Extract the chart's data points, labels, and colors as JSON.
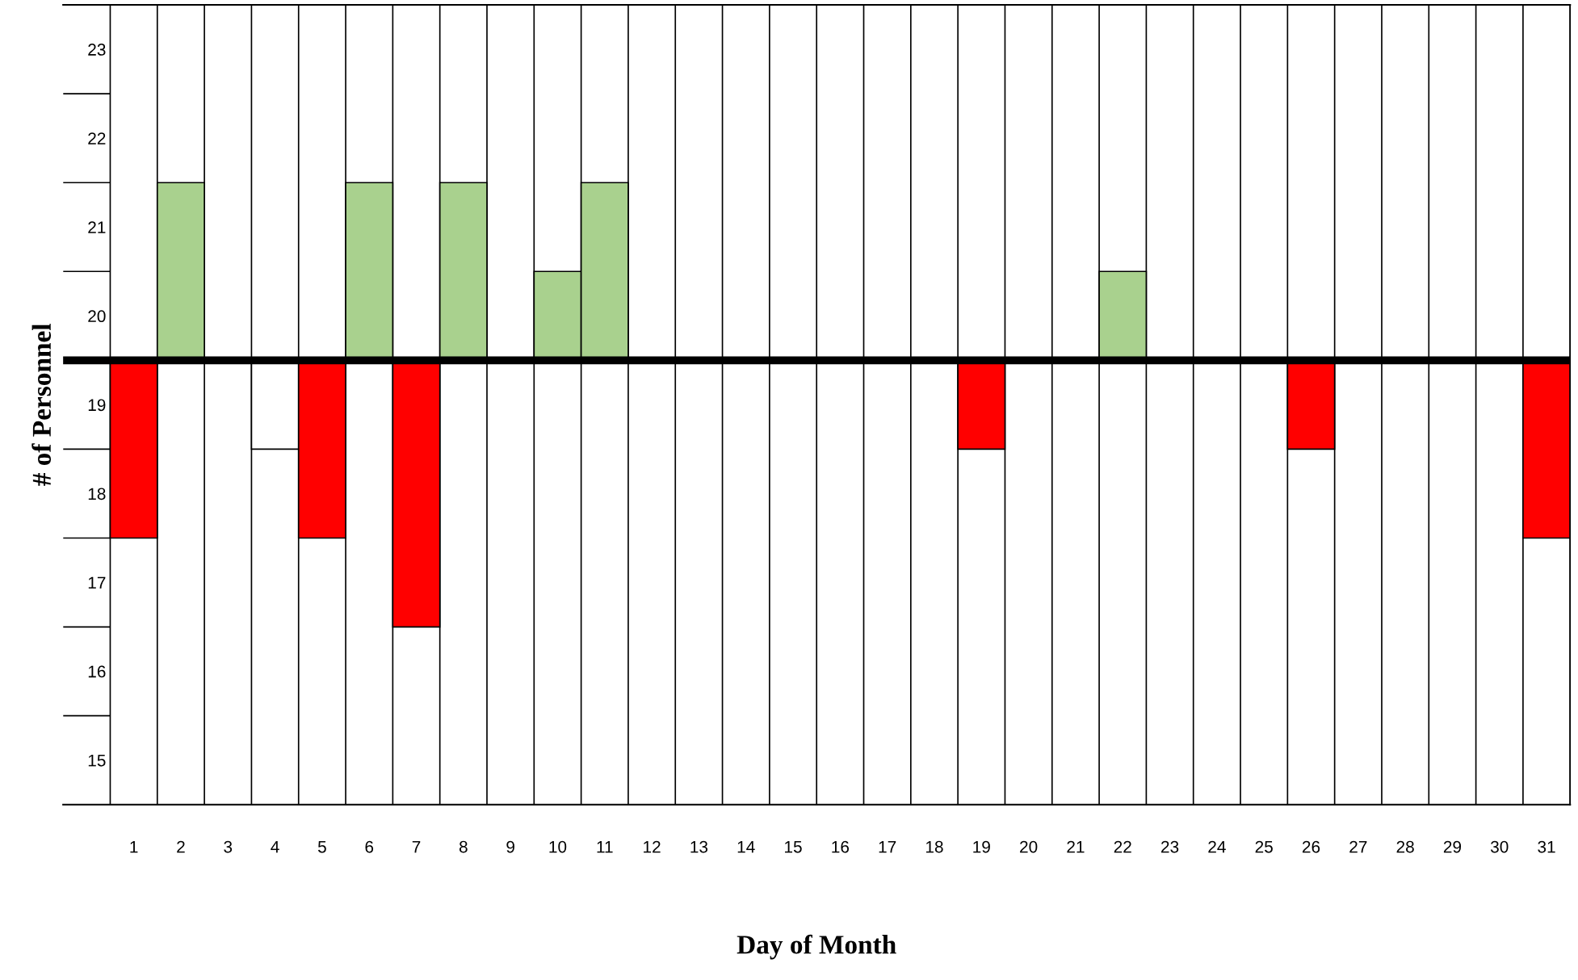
{
  "chart_data": {
    "type": "bar",
    "xlabel": "Day of Month",
    "ylabel": "# of Personnel",
    "categories": [
      "1",
      "2",
      "3",
      "4",
      "5",
      "6",
      "7",
      "8",
      "9",
      "10",
      "11",
      "12",
      "13",
      "14",
      "15",
      "16",
      "17",
      "18",
      "19",
      "20",
      "21",
      "22",
      "23",
      "24",
      "25",
      "26",
      "27",
      "28",
      "29",
      "30",
      "31"
    ],
    "base": [
      19.5,
      19.5,
      null,
      19.5,
      19.5,
      19.5,
      19.5,
      19.5,
      null,
      19.5,
      19.5,
      null,
      null,
      null,
      null,
      null,
      null,
      null,
      19.5,
      null,
      null,
      19.5,
      null,
      null,
      null,
      19.5,
      null,
      null,
      null,
      null,
      19.5
    ],
    "values": [
      -2,
      2,
      null,
      -1,
      -2,
      2,
      -3,
      2,
      null,
      1,
      2,
      null,
      null,
      null,
      null,
      null,
      null,
      null,
      -1,
      null,
      null,
      1,
      null,
      null,
      null,
      -1,
      null,
      null,
      null,
      null,
      -2
    ],
    "colors": [
      "#ff0000",
      "#a9d18e",
      null,
      "#ffffff",
      "#ff0000",
      "#a9d18e",
      "#ff0000",
      "#a9d18e",
      null,
      "#a9d18e",
      "#a9d18e",
      null,
      null,
      null,
      null,
      null,
      null,
      null,
      "#ff0000",
      null,
      null,
      "#a9d18e",
      null,
      null,
      null,
      "#ff0000",
      null,
      null,
      null,
      null,
      "#ff0000"
    ],
    "ylim": [
      14.5,
      23.5
    ],
    "yticks": [
      15,
      16,
      17,
      18,
      19,
      20,
      21,
      22,
      23
    ],
    "ref_lines": [
      {
        "axis": "y",
        "value": 19.5,
        "color": "#000000"
      }
    ],
    "grid": "x"
  }
}
